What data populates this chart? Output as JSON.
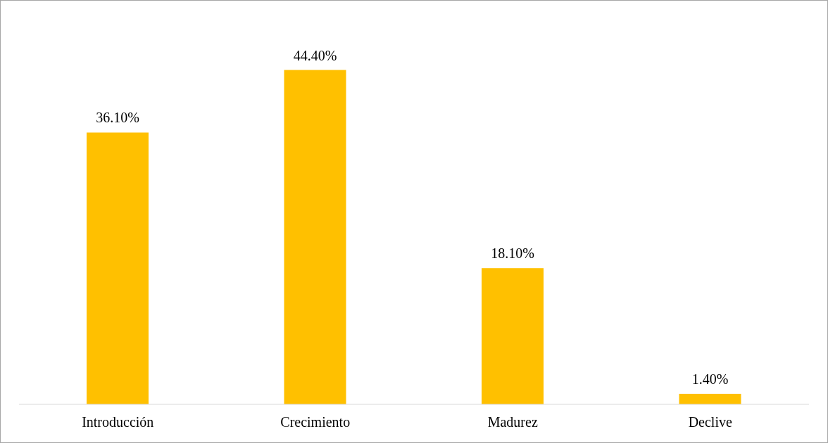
{
  "chart_data": {
    "type": "bar",
    "categories": [
      "Introducción",
      "Crecimiento",
      "Madurez",
      "Declive"
    ],
    "values": [
      36.1,
      44.4,
      18.1,
      1.4
    ],
    "value_labels": [
      "36.10%",
      "44.40%",
      "18.10%",
      "1.40%"
    ],
    "color": "#ffc000",
    "grid": false
  }
}
